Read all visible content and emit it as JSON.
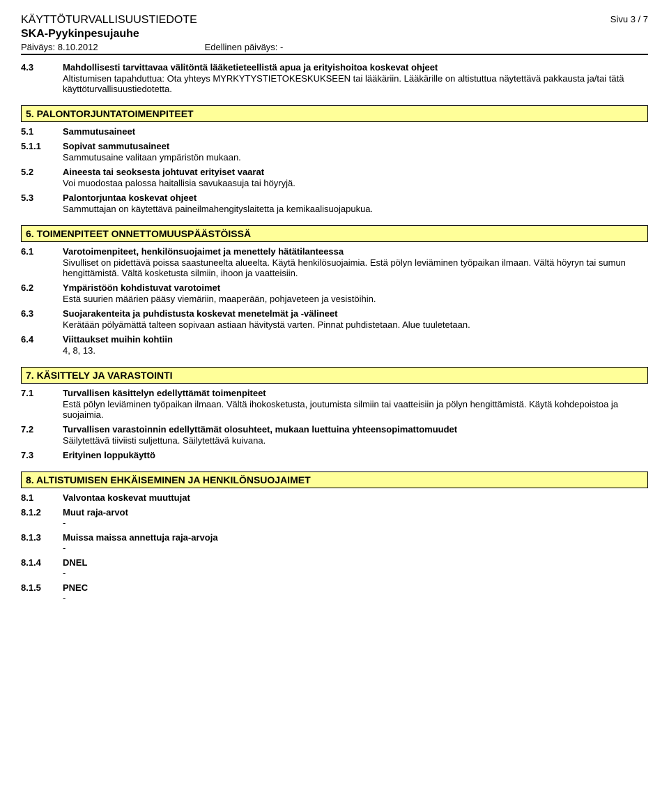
{
  "header": {
    "doc_type": "KÄYTTÖTURVALLISUUSTIEDOTE",
    "product": "SKA-Pyykinpesujauhe",
    "page": "Sivu 3 / 7",
    "date_label": "Päiväys: 8.10.2012",
    "prev_date_label": "Edellinen päiväys: -"
  },
  "pre_section": {
    "num": "4.3",
    "title": "Mahdollisesti tarvittavaa välitöntä lääketieteellistä apua ja erityishoitoa koskevat ohjeet",
    "body": "Altistumisen tapahduttua: Ota yhteys MYRKYTYSTIETOKESKUKSEEN tai lääkäriin. Lääkärille on altistuttua näytettävä pakkausta ja/tai tätä käyttöturvallisuustiedotetta."
  },
  "section5": {
    "heading": "5. PALONTORJUNTATOIMENPITEET",
    "r1": {
      "num": "5.1",
      "title": "Sammutusaineet"
    },
    "r2": {
      "num": "5.1.1",
      "title": "Sopivat sammutusaineet",
      "body": "Sammutusaine valitaan ympäristön mukaan."
    },
    "r3": {
      "num": "5.2",
      "title": "Aineesta tai seoksesta johtuvat erityiset vaarat",
      "body": "Voi muodostaa palossa haitallisia savukaasuja tai höyryjä."
    },
    "r4": {
      "num": "5.3",
      "title": "Palontorjuntaa koskevat ohjeet",
      "body": "Sammuttajan on käytettävä paineilmahengityslaitetta ja kemikaalisuojapukua."
    }
  },
  "section6": {
    "heading": "6. TOIMENPITEET ONNETTOMUUSPÄÄSTÖISSÄ",
    "r1": {
      "num": "6.1",
      "title": "Varotoimenpiteet, henkilönsuojaimet ja menettely hätätilanteessa",
      "body": "Sivulliset on pidettävä poissa saastuneelta alueelta. Käytä henkilösuojaimia. Estä pölyn leviäminen työpaikan ilmaan. Vältä höyryn tai sumun hengittämistä. Vältä kosketusta silmiin, ihoon ja vaatteisiin."
    },
    "r2": {
      "num": "6.2",
      "title": "Ympäristöön kohdistuvat varotoimet",
      "body": "Estä suurien määrien pääsy viemäriin, maaperään, pohjaveteen ja vesistöihin."
    },
    "r3": {
      "num": "6.3",
      "title": "Suojarakenteita ja puhdistusta koskevat menetelmät ja -välineet",
      "body": "Kerätään pölyämättä talteen sopivaan astiaan hävitystä varten. Pinnat puhdistetaan. Alue tuuletetaan."
    },
    "r4": {
      "num": "6.4",
      "title": "Viittaukset muihin kohtiin",
      "body": "4, 8, 13."
    }
  },
  "section7": {
    "heading": "7. KÄSITTELY JA VARASTOINTI",
    "r1": {
      "num": "7.1",
      "title": "Turvallisen käsittelyn edellyttämät toimenpiteet",
      "body": "Estä pölyn leviäminen työpaikan ilmaan. Vältä ihokosketusta, joutumista silmiin tai vaatteisiin ja pölyn hengittämistä. Käytä kohdepoistoa ja suojaimia."
    },
    "r2": {
      "num": "7.2",
      "title": "Turvallisen varastoinnin edellyttämät olosuhteet, mukaan luettuina yhteensopimattomuudet",
      "body": "Säilytettävä tiiviisti suljettuna. Säilytettävä kuivana."
    },
    "r3": {
      "num": "7.3",
      "title": "Erityinen loppukäyttö"
    }
  },
  "section8": {
    "heading": "8. ALTISTUMISEN EHKÄISEMINEN JA HENKILÖNSUOJAIMET",
    "r1": {
      "num": "8.1",
      "title": "Valvontaa koskevat muuttujat"
    },
    "r2": {
      "num": "8.1.2",
      "title": "Muut raja-arvot",
      "dash": "-"
    },
    "r3": {
      "num": "8.1.3",
      "title": "Muissa maissa annettuja raja-arvoja",
      "dash": "-"
    },
    "r4": {
      "num": "8.1.4",
      "title": "DNEL",
      "dash": "-"
    },
    "r5": {
      "num": "8.1.5",
      "title": "PNEC",
      "dash": "-"
    }
  }
}
